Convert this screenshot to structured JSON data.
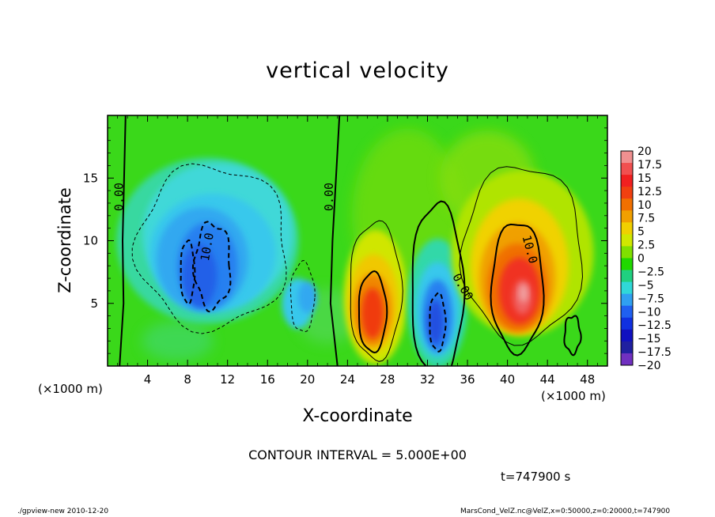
{
  "chart_data": {
    "type": "contour",
    "title": "vertical velocity",
    "xlabel": "X-coordinate",
    "ylabel": "Z-coordinate",
    "x_unit_label": "(×1000 m)",
    "xlim": [
      0,
      50
    ],
    "ylim": [
      0,
      20
    ],
    "x_ticks": [
      4,
      8,
      12,
      16,
      20,
      24,
      28,
      32,
      36,
      40,
      44,
      48
    ],
    "y_ticks": [
      5,
      10,
      15
    ],
    "contour_interval_text": "CONTOUR INTERVAL = 5.000E+00",
    "contour_labels": [
      "0.00",
      "0.00",
      "0.00",
      "10.0",
      "10.0"
    ],
    "colorbar": {
      "levels": [
        "20",
        "17.5",
        "15",
        "12.5",
        "10",
        "7.5",
        "5",
        "2.5",
        "0",
        "−2.5",
        "−5",
        "−7.5",
        "−10",
        "−12.5",
        "−15",
        "−17.5",
        "−20"
      ],
      "colors": [
        "#f09090",
        "#f05050",
        "#f02020",
        "#f04010",
        "#f07000",
        "#f0a000",
        "#f0d000",
        "#d0e800",
        "#80e000",
        "#20d800",
        "#20d080",
        "#30d8d8",
        "#30a0f0",
        "#2060f0",
        "#1030e0",
        "#1010c0",
        "#2020a0",
        "#7030c0"
      ]
    },
    "features": [
      {
        "kind": "updraft",
        "x": 26.5,
        "z": 4.5,
        "peak": 10
      },
      {
        "kind": "updraft",
        "x": 41,
        "z": 6,
        "peak": 15
      },
      {
        "kind": "downdraft",
        "x": 9.5,
        "z": 7.5,
        "peak": -12.5
      },
      {
        "kind": "downdraft",
        "x": 33,
        "z": 4,
        "peak": -12.5
      }
    ]
  },
  "annotations": {
    "time": "t=747900  s",
    "footer_left": "./gpview-new  2010-12-20",
    "footer_right": "MarsCond_VelZ.nc@VelZ,x=0:50000,z=0:20000,t=747900"
  }
}
